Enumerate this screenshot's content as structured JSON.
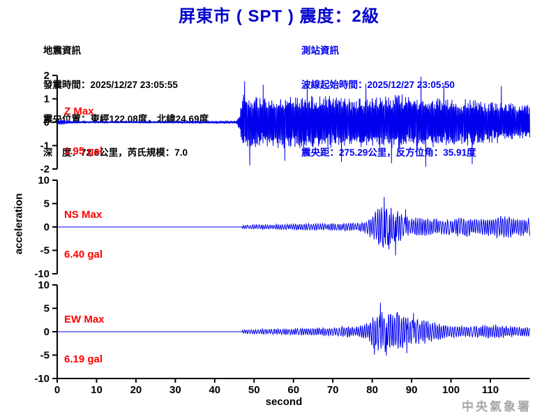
{
  "title": "屏東市 ( SPT ) 震度：2級",
  "eq_info": {
    "lines": [
      "地震資訊",
      "發震時間：2025/12/27 23:05:55",
      "震央位置：東經122.08度，北緯24.69度",
      "深　度：72.8公里，芮氏規模：7.0"
    ]
  },
  "station_info": {
    "lines": [
      "測站資訊",
      "波線起始時間：2025/12/27 23:05:50",
      "測站位置：東經120.50度，北緯22.68度",
      "震央距：275.29公里，反方位角：35.91度"
    ]
  },
  "watermark": "中央氣象署",
  "colors": {
    "title": "#0000cc",
    "info_right": "#0000ee",
    "trace": "#0000ee",
    "max_label": "#ff0000",
    "axis": "#000000",
    "watermark": "#a6a6a6"
  },
  "chart_data": {
    "type": "line",
    "xlabel": "second",
    "ylabel": "acceleration",
    "x_range": [
      0,
      120
    ],
    "x_ticks": [
      0,
      10,
      20,
      30,
      40,
      50,
      60,
      70,
      80,
      90,
      100,
      110
    ],
    "unit": "gal",
    "traces": [
      {
        "id": "Z",
        "max_label_line1": "Z Max",
        "max_label_line2": "1.95 gal",
        "max_gal": 1.95,
        "ylim": [
          -2,
          2
        ],
        "yticks": [
          2,
          1,
          0,
          -1,
          -2
        ],
        "onset_s": 46.5,
        "envelope": [
          [
            0,
            0.1
          ],
          [
            1.2,
            0.13
          ],
          [
            2.5,
            0.05
          ],
          [
            6,
            0.035
          ],
          [
            15,
            0.03
          ],
          [
            30,
            0.035
          ],
          [
            40,
            0.045
          ],
          [
            45.5,
            0.05
          ],
          [
            46.3,
            0.35
          ],
          [
            47,
            1.25
          ],
          [
            52,
            1.1
          ],
          [
            60,
            1.15
          ],
          [
            68,
            1.2
          ],
          [
            75,
            1.1
          ],
          [
            82,
            1.15
          ],
          [
            90,
            1.25
          ],
          [
            95,
            1.1
          ],
          [
            100,
            1.0
          ],
          [
            105,
            1.0
          ],
          [
            110,
            0.95
          ],
          [
            115,
            0.85
          ],
          [
            120,
            0.75
          ]
        ],
        "spikes": [
          [
            47.6,
            1.75
          ],
          [
            48.9,
            -1.85
          ],
          [
            52.3,
            1.6
          ],
          [
            57.8,
            -1.65
          ],
          [
            63.5,
            1.7
          ],
          [
            72.2,
            -1.7
          ],
          [
            78.4,
            1.65
          ],
          [
            84.9,
            -1.75
          ],
          [
            92.4,
            1.95
          ],
          [
            93.6,
            -1.9
          ],
          [
            98.2,
            1.6
          ],
          [
            105.4,
            -1.8
          ],
          [
            112.8,
            1.55
          ]
        ],
        "synth": {
          "seed": 11,
          "dt": 0.05,
          "step": 1.3
        }
      },
      {
        "id": "NS",
        "max_label_line1": "NS Max",
        "max_label_line2": "6.40 gal",
        "max_gal": 6.4,
        "ylim": [
          -10,
          10
        ],
        "yticks": [
          10,
          5,
          0,
          -5,
          -10
        ],
        "onset_s": 47.0,
        "envelope": [
          [
            0,
            0
          ],
          [
            46.8,
            0
          ],
          [
            47.2,
            0.45
          ],
          [
            52,
            0.55
          ],
          [
            58,
            0.6
          ],
          [
            63,
            0.75
          ],
          [
            70,
            0.8
          ],
          [
            76,
            0.95
          ],
          [
            78.5,
            1.4
          ],
          [
            80.5,
            3.2
          ],
          [
            82,
            5.0
          ],
          [
            83.5,
            5.5
          ],
          [
            85,
            4.2
          ],
          [
            87,
            3.2
          ],
          [
            90,
            2.4
          ],
          [
            95,
            2.0
          ],
          [
            99,
            1.8
          ],
          [
            103,
            2.3
          ],
          [
            107,
            1.7
          ],
          [
            110,
            2.2
          ],
          [
            113,
            2.8
          ],
          [
            116,
            2.2
          ],
          [
            120,
            1.9
          ]
        ],
        "spikes": [
          [
            83.0,
            6.4
          ],
          [
            84.2,
            -4.8
          ],
          [
            85.9,
            -6.1
          ],
          [
            88.5,
            3.8
          ]
        ],
        "synth": {
          "seed": 22,
          "dt": 0.08,
          "step": 0.9
        }
      },
      {
        "id": "EW",
        "max_label_line1": "EW Max",
        "max_label_line2": "6.19 gal",
        "max_gal": 6.19,
        "ylim": [
          -10,
          10
        ],
        "yticks": [
          10,
          5,
          0,
          -5,
          -10
        ],
        "onset_s": 47.0,
        "envelope": [
          [
            0,
            0
          ],
          [
            46.8,
            0
          ],
          [
            47.2,
            0.5
          ],
          [
            54,
            0.6
          ],
          [
            60,
            0.75
          ],
          [
            65,
            0.9
          ],
          [
            70,
            1.0
          ],
          [
            73,
            1.3
          ],
          [
            76,
            1.1
          ],
          [
            78.5,
            1.8
          ],
          [
            80,
            3.5
          ],
          [
            82,
            4.8
          ],
          [
            85,
            4.4
          ],
          [
            88,
            4.0
          ],
          [
            91,
            3.2
          ],
          [
            94,
            2.4
          ],
          [
            97,
            1.9
          ],
          [
            101,
            1.5
          ],
          [
            105,
            1.3
          ],
          [
            109,
            1.5
          ],
          [
            112,
            1.6
          ],
          [
            115,
            1.2
          ],
          [
            120,
            1.1
          ]
        ],
        "spikes": [
          [
            80.6,
            -4.9
          ],
          [
            82.1,
            6.19
          ],
          [
            83.6,
            -5.1
          ],
          [
            86.4,
            4.2
          ],
          [
            88.8,
            -4.6
          ],
          [
            90.5,
            4.0
          ]
        ],
        "synth": {
          "seed": 33,
          "dt": 0.08,
          "step": 0.9
        }
      }
    ]
  }
}
